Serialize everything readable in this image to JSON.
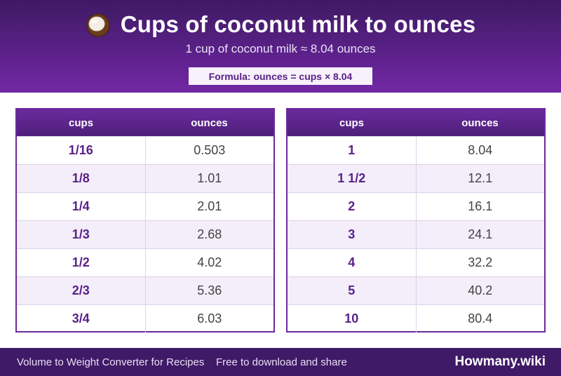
{
  "header": {
    "icon": "coconut-icon",
    "title": "Cups of coconut milk to ounces",
    "subtitle": "1 cup of coconut milk ≈ 8.04 ounces",
    "formula": "Formula: ounces = cups × 8.04"
  },
  "tables": [
    {
      "columns": [
        "cups",
        "ounces"
      ],
      "rows": [
        [
          "1/16",
          "0.503"
        ],
        [
          "1/8",
          "1.01"
        ],
        [
          "1/4",
          "2.01"
        ],
        [
          "1/3",
          "2.68"
        ],
        [
          "1/2",
          "4.02"
        ],
        [
          "2/3",
          "5.36"
        ],
        [
          "3/4",
          "6.03"
        ]
      ]
    },
    {
      "columns": [
        "cups",
        "ounces"
      ],
      "rows": [
        [
          "1",
          "8.04"
        ],
        [
          "1 1/2",
          "12.1"
        ],
        [
          "2",
          "16.1"
        ],
        [
          "3",
          "24.1"
        ],
        [
          "4",
          "32.2"
        ],
        [
          "5",
          "40.2"
        ],
        [
          "10",
          "80.4"
        ]
      ]
    }
  ],
  "footer": {
    "left": "Volume to Weight Converter for Recipes",
    "middle": "Free to download and share",
    "brand": "Howmany.wiki"
  },
  "colors": {
    "header": "#5a2188",
    "accent": "#6b2a9c",
    "footer": "#3f1a66",
    "row_alt": "#f3eefa"
  }
}
